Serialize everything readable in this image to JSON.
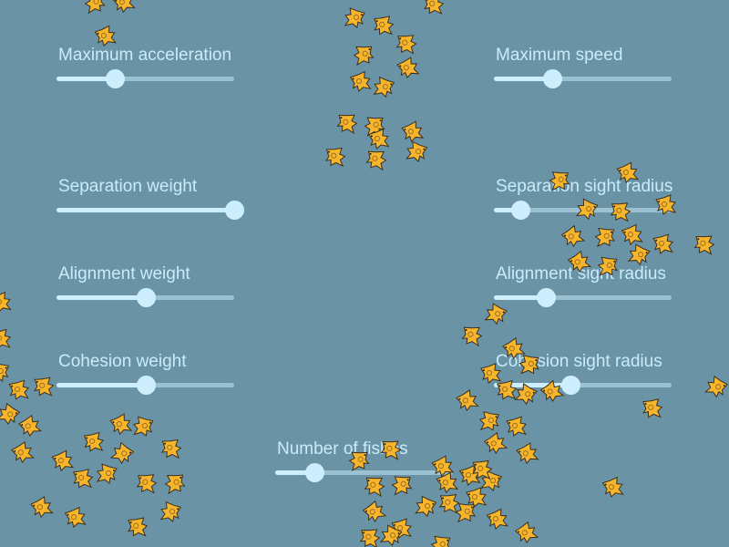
{
  "colors": {
    "background": "#6a93a6",
    "label": "#c9ecfb",
    "slider_active": "#cdeefc",
    "slider_track": "#9cc1d0",
    "fish": "#f7b52c"
  },
  "sliders": [
    {
      "id": "max-acceleration",
      "label": "Maximum acceleration",
      "value": 0.33
    },
    {
      "id": "max-speed",
      "label": "Maximum speed",
      "value": 0.33
    },
    {
      "id": "separation-weight",
      "label": "Separation weight",
      "value": 1.0
    },
    {
      "id": "separation-sight-radius",
      "label": "Separation sight radius",
      "value": 0.15
    },
    {
      "id": "alignment-weight",
      "label": "Alignment weight",
      "value": 0.5
    },
    {
      "id": "alignment-sight-radius",
      "label": "Alignment sight radius",
      "value": 0.29
    },
    {
      "id": "cohesion-weight",
      "label": "Cohesion weight",
      "value": 0.5
    },
    {
      "id": "cohesion-sight-radius",
      "label": "Cohesion sight radius",
      "value": 0.43
    },
    {
      "id": "number-of-fishes",
      "label": "Number of fishes",
      "value": 0.22
    }
  ]
}
